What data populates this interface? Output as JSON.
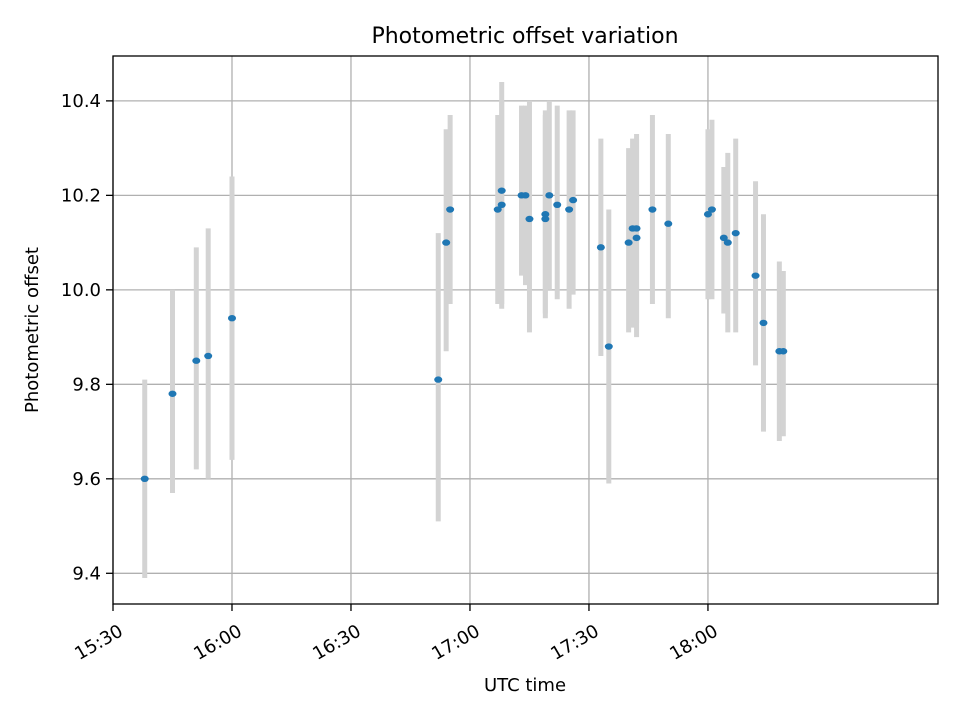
{
  "chart_data": {
    "type": "scatter",
    "title": "Photometric offset variation",
    "xlabel": "UTC time",
    "ylabel": "Photometric offset",
    "xlim": [
      "15:30",
      "18:58"
    ],
    "ylim": [
      9.335,
      10.495
    ],
    "x_ticks": [
      "15:30",
      "16:00",
      "16:30",
      "17:00",
      "17:30",
      "18:00"
    ],
    "y_ticks": [
      "9.4",
      "9.6",
      "9.8",
      "10.0",
      "10.2",
      "10.4"
    ],
    "x_tick_rotation": 30,
    "grid": true,
    "marker_color": "#1f77b4",
    "errorbar_color": "#d3d3d3",
    "points": [
      {
        "x": "15:38",
        "y": 9.6,
        "ylo": 9.39,
        "yhi": 9.81
      },
      {
        "x": "15:45",
        "y": 9.78,
        "ylo": 9.57,
        "yhi": 10.0
      },
      {
        "x": "15:51",
        "y": 9.85,
        "ylo": 9.62,
        "yhi": 10.09
      },
      {
        "x": "15:54",
        "y": 9.86,
        "ylo": 9.6,
        "yhi": 10.13
      },
      {
        "x": "16:00",
        "y": 9.94,
        "ylo": 9.64,
        "yhi": 10.24
      },
      {
        "x": "16:52",
        "y": 9.81,
        "ylo": 9.51,
        "yhi": 10.12
      },
      {
        "x": "16:54",
        "y": 10.1,
        "ylo": 9.87,
        "yhi": 10.34
      },
      {
        "x": "16:55",
        "y": 10.17,
        "ylo": 9.97,
        "yhi": 10.37
      },
      {
        "x": "17:07",
        "y": 10.17,
        "ylo": 9.97,
        "yhi": 10.37
      },
      {
        "x": "17:08",
        "y": 10.18,
        "ylo": 9.96,
        "yhi": 10.4
      },
      {
        "x": "17:08",
        "y": 10.21,
        "ylo": 9.97,
        "yhi": 10.44
      },
      {
        "x": "17:13",
        "y": 10.2,
        "ylo": 10.03,
        "yhi": 10.39
      },
      {
        "x": "17:14",
        "y": 10.2,
        "ylo": 10.01,
        "yhi": 10.39
      },
      {
        "x": "17:15",
        "y": 10.15,
        "ylo": 9.91,
        "yhi": 10.4
      },
      {
        "x": "17:19",
        "y": 10.16,
        "ylo": 9.95,
        "yhi": 10.38
      },
      {
        "x": "17:19",
        "y": 10.15,
        "ylo": 9.94,
        "yhi": 10.37
      },
      {
        "x": "17:20",
        "y": 10.2,
        "ylo": 10.0,
        "yhi": 10.4
      },
      {
        "x": "17:22",
        "y": 10.18,
        "ylo": 9.98,
        "yhi": 10.39
      },
      {
        "x": "17:25",
        "y": 10.17,
        "ylo": 9.96,
        "yhi": 10.38
      },
      {
        "x": "17:26",
        "y": 10.19,
        "ylo": 9.99,
        "yhi": 10.38
      },
      {
        "x": "17:33",
        "y": 10.09,
        "ylo": 9.86,
        "yhi": 10.32
      },
      {
        "x": "17:35",
        "y": 9.88,
        "ylo": 9.59,
        "yhi": 10.17
      },
      {
        "x": "17:40",
        "y": 10.1,
        "ylo": 9.91,
        "yhi": 10.3
      },
      {
        "x": "17:41",
        "y": 10.13,
        "ylo": 9.92,
        "yhi": 10.32
      },
      {
        "x": "17:42",
        "y": 10.13,
        "ylo": 9.93,
        "yhi": 10.33
      },
      {
        "x": "17:42",
        "y": 10.11,
        "ylo": 9.9,
        "yhi": 10.32
      },
      {
        "x": "17:46",
        "y": 10.17,
        "ylo": 9.97,
        "yhi": 10.37
      },
      {
        "x": "17:50",
        "y": 10.14,
        "ylo": 9.94,
        "yhi": 10.33
      },
      {
        "x": "18:00",
        "y": 10.16,
        "ylo": 9.98,
        "yhi": 10.34
      },
      {
        "x": "18:01",
        "y": 10.17,
        "ylo": 9.98,
        "yhi": 10.36
      },
      {
        "x": "18:04",
        "y": 10.11,
        "ylo": 9.95,
        "yhi": 10.26
      },
      {
        "x": "18:05",
        "y": 10.1,
        "ylo": 9.91,
        "yhi": 10.29
      },
      {
        "x": "18:07",
        "y": 10.12,
        "ylo": 9.91,
        "yhi": 10.32
      },
      {
        "x": "18:12",
        "y": 10.03,
        "ylo": 9.84,
        "yhi": 10.23
      },
      {
        "x": "18:14",
        "y": 9.93,
        "ylo": 9.7,
        "yhi": 10.16
      },
      {
        "x": "18:18",
        "y": 9.87,
        "ylo": 9.68,
        "yhi": 10.06
      },
      {
        "x": "18:19",
        "y": 9.87,
        "ylo": 9.69,
        "yhi": 10.04
      }
    ]
  }
}
